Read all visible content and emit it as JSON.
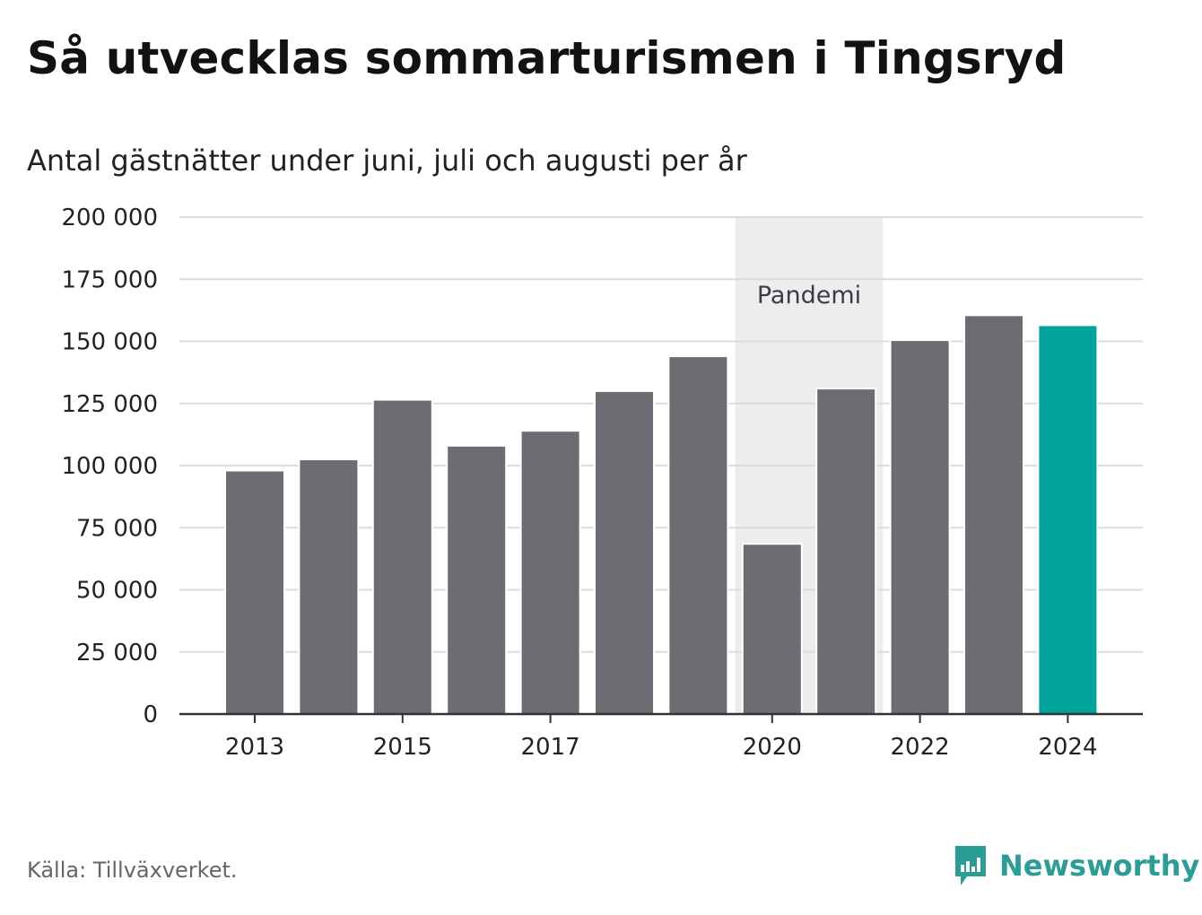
{
  "title": "Så utvecklas sommarturismen i Tingsryd",
  "subtitle": "Antal gästnätter under juni, juli och augusti per år",
  "source": "Källa: Tillväxverket.",
  "brand": {
    "name": "Newsworthy",
    "icon": "newsworthy-logo-icon",
    "color": "#2a9d96"
  },
  "chart_data": {
    "type": "bar",
    "title": "Så utvecklas sommarturismen i Tingsryd",
    "subtitle": "Antal gästnätter under juni, juli och augusti per år",
    "categories": [
      "2013",
      "2014",
      "2015",
      "2016",
      "2017",
      "2018",
      "2019",
      "2020",
      "2021",
      "2022",
      "2023",
      "2024"
    ],
    "values": [
      98000,
      102500,
      126500,
      108000,
      114000,
      130000,
      144000,
      68500,
      131000,
      150500,
      160500,
      156500
    ],
    "x_tick_labels": [
      "2013",
      "2015",
      "2017",
      "2020",
      "2022",
      "2024"
    ],
    "y_ticks": [
      0,
      25000,
      50000,
      75000,
      100000,
      125000,
      150000,
      175000,
      200000
    ],
    "y_tick_labels": [
      "0",
      "25 000",
      "50 000",
      "75 000",
      "100 000",
      "125 000",
      "150 000",
      "175 000",
      "200 000"
    ],
    "ylim": [
      0,
      200000
    ],
    "grid": true,
    "highlight": {
      "category": "2024",
      "color": "#00a39a"
    },
    "bar_color": "#6d6c72",
    "annotation": {
      "label": "Pandemi",
      "from": "2020",
      "to": "2021",
      "color": "#ededed"
    }
  }
}
